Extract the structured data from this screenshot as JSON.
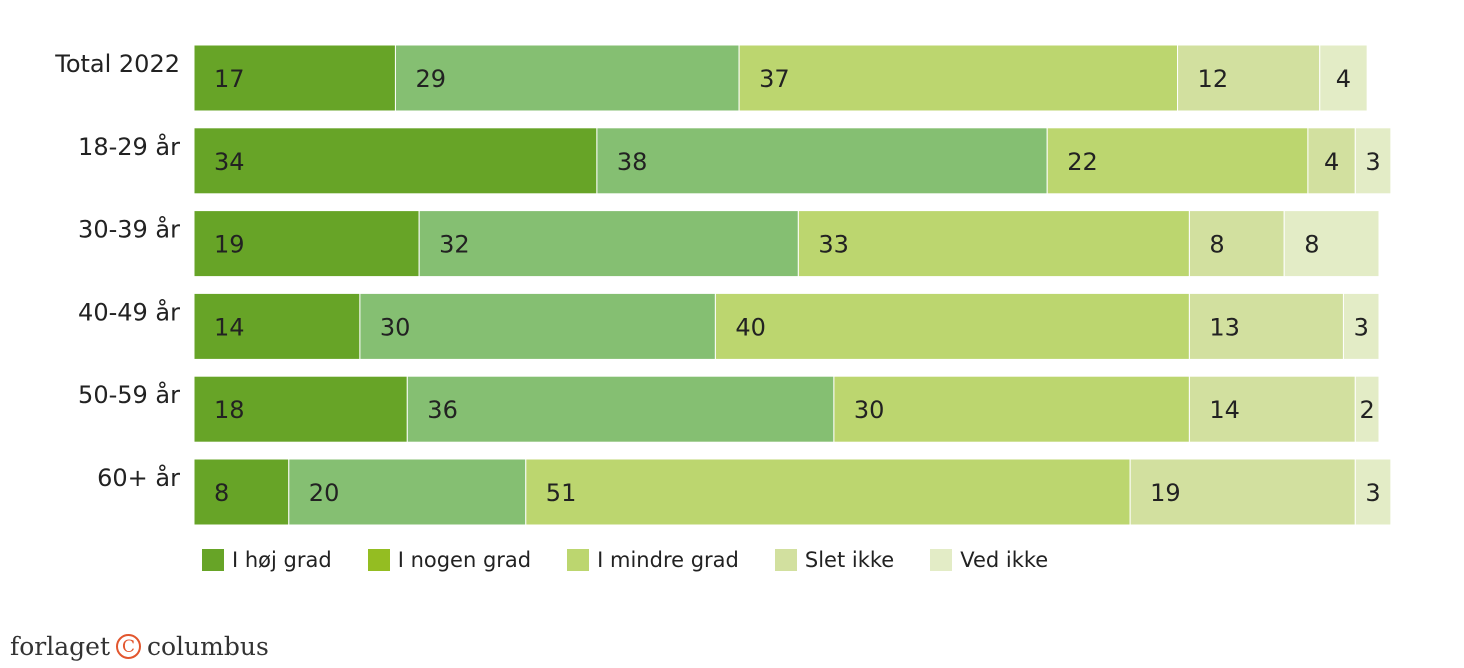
{
  "chart_data": {
    "type": "bar",
    "orientation": "horizontal",
    "stacked": true,
    "categories": [
      "Total 2022",
      "18-29 år",
      "30-39 år",
      "40-49 år",
      "50-59 år",
      "60+ år"
    ],
    "series": [
      {
        "name": "I høj grad",
        "color": "#67a427",
        "values": [
          17,
          34,
          19,
          14,
          18,
          8
        ]
      },
      {
        "name": "I nogen grad",
        "color": "#85bf72",
        "values": [
          29,
          38,
          32,
          30,
          36,
          20
        ]
      },
      {
        "name": "I mindre grad",
        "color": "#bcd66f",
        "values": [
          37,
          22,
          33,
          40,
          30,
          51
        ]
      },
      {
        "name": "Slet ikke",
        "color": "#d2e09f",
        "values": [
          12,
          4,
          8,
          13,
          14,
          19
        ]
      },
      {
        "name": "Ved ikke",
        "color": "#e3ecc6",
        "values": [
          4,
          3,
          8,
          3,
          2,
          3
        ]
      }
    ],
    "legend": {
      "position": "bottom",
      "entries": [
        {
          "label": "I høj grad",
          "color": "#67a427"
        },
        {
          "label": "I nogen grad",
          "color": "#94bd22"
        },
        {
          "label": "I mindre grad",
          "color": "#bcd66f"
        },
        {
          "label": "Slet ikke",
          "color": "#d2e09f"
        },
        {
          "label": "Ved ikke",
          "color": "#e3ecc6"
        }
      ]
    },
    "grid": false
  },
  "brand": {
    "left": "forlaget",
    "symbol": "C",
    "right": "columbus",
    "accent": "#e2562e"
  }
}
